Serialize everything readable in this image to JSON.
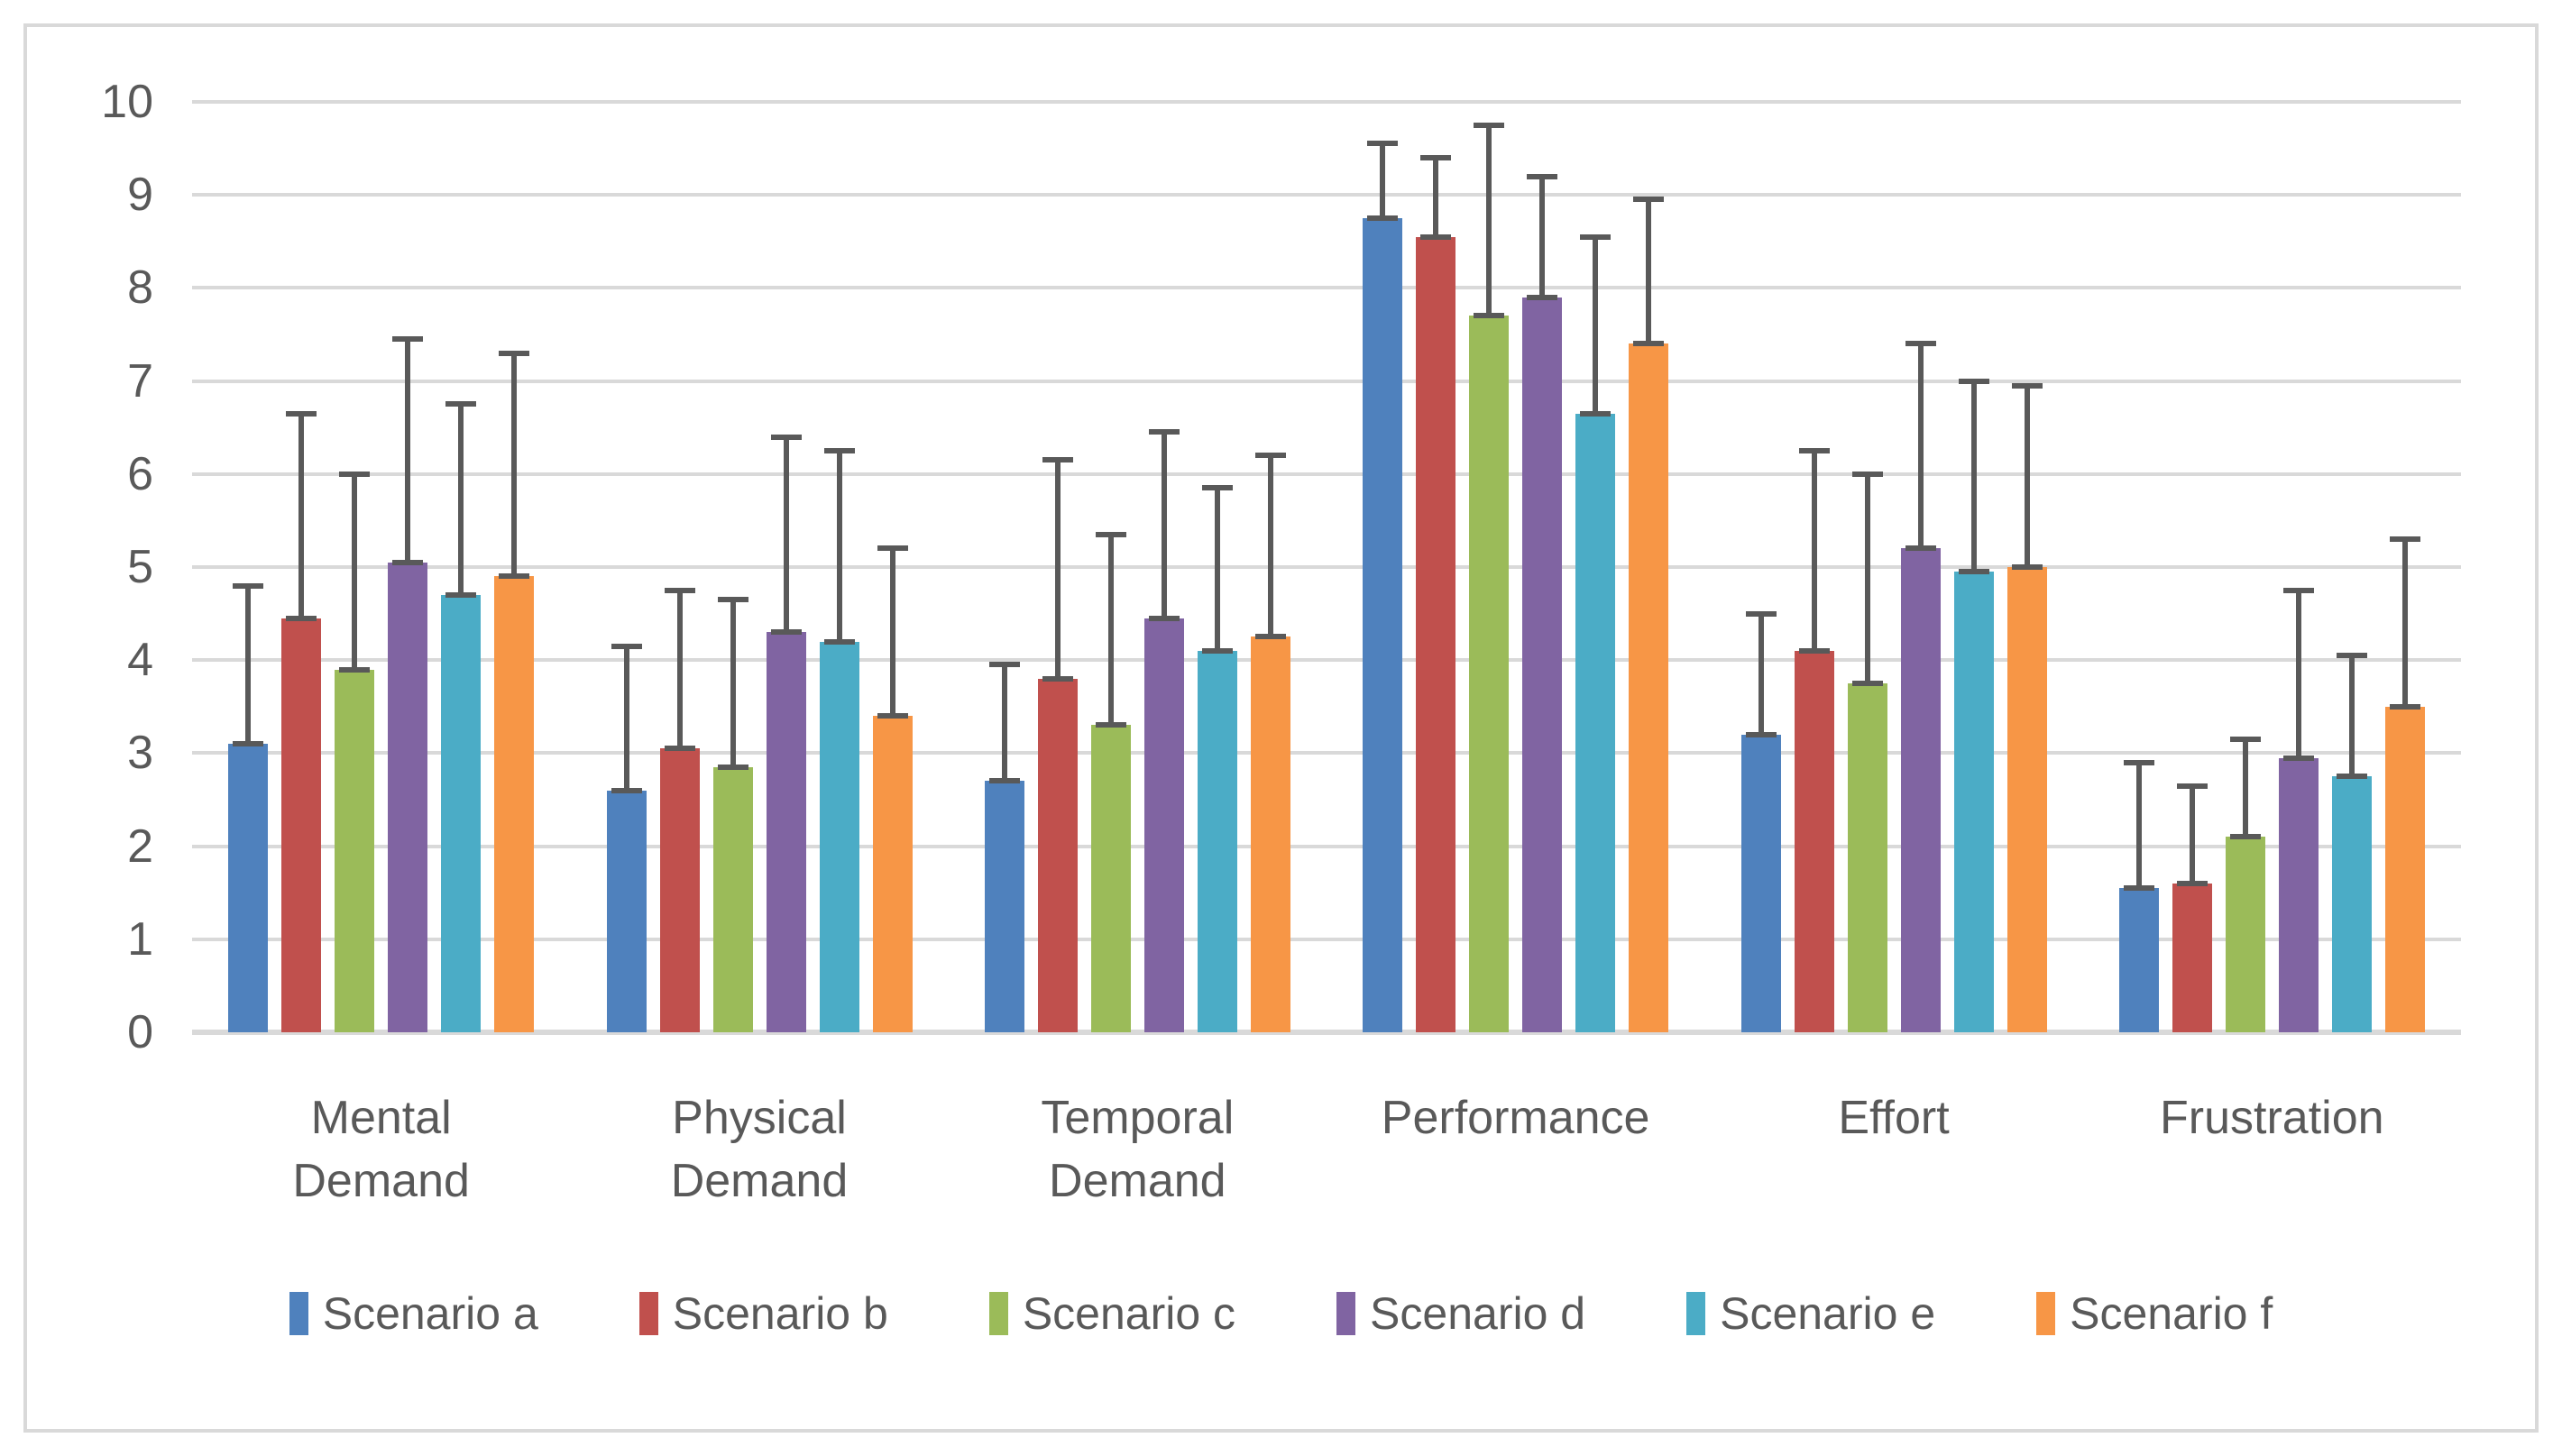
{
  "chart_data": {
    "type": "bar",
    "title": "",
    "xlabel": "",
    "ylabel": "",
    "ylim": [
      0,
      10
    ],
    "yticks": [
      0,
      1,
      2,
      3,
      4,
      5,
      6,
      7,
      8,
      9,
      10
    ],
    "grid": true,
    "legend_position": "bottom",
    "error_bars": "plus_direction_with_caps",
    "categories": [
      "Mental\nDemand",
      "Physical\nDemand",
      "Temporal\nDemand",
      "Performance",
      "Effort",
      "Frustration"
    ],
    "series": [
      {
        "name": "Scenario a",
        "color": "#4F81BD",
        "values": [
          3.1,
          2.6,
          2.7,
          8.75,
          3.2,
          1.55
        ],
        "error_plus": [
          1.7,
          1.55,
          1.25,
          0.8,
          1.3,
          1.35
        ]
      },
      {
        "name": "Scenario b",
        "color": "#C0504D",
        "values": [
          4.45,
          3.05,
          3.8,
          8.55,
          4.1,
          1.6
        ],
        "error_plus": [
          2.2,
          1.7,
          2.35,
          0.85,
          2.15,
          1.05
        ]
      },
      {
        "name": "Scenario c",
        "color": "#9BBB59",
        "values": [
          3.9,
          2.85,
          3.3,
          7.7,
          3.75,
          2.1
        ],
        "error_plus": [
          2.1,
          1.8,
          2.05,
          2.05,
          2.25,
          1.05
        ]
      },
      {
        "name": "Scenario d",
        "color": "#8064A2",
        "values": [
          5.05,
          4.3,
          4.45,
          7.9,
          5.2,
          2.95
        ],
        "error_plus": [
          2.4,
          2.1,
          2.0,
          1.3,
          2.2,
          1.8
        ]
      },
      {
        "name": "Scenario e",
        "color": "#4BACC6",
        "values": [
          4.7,
          4.2,
          4.1,
          6.65,
          4.95,
          2.75
        ],
        "error_plus": [
          2.05,
          2.05,
          1.75,
          1.9,
          2.05,
          1.3
        ]
      },
      {
        "name": "Scenario f",
        "color": "#F79646",
        "values": [
          4.9,
          3.4,
          4.25,
          7.4,
          5.0,
          3.5
        ],
        "error_plus": [
          2.4,
          1.8,
          1.95,
          1.55,
          1.95,
          1.8
        ]
      }
    ]
  },
  "style": {
    "grid_color": "#d9d9d9",
    "axis_color": "#d9d9d9",
    "error_bar_color": "#595959",
    "text_color": "#595959",
    "frame_border_color": "#d9d9d9",
    "background": "#ffffff"
  }
}
